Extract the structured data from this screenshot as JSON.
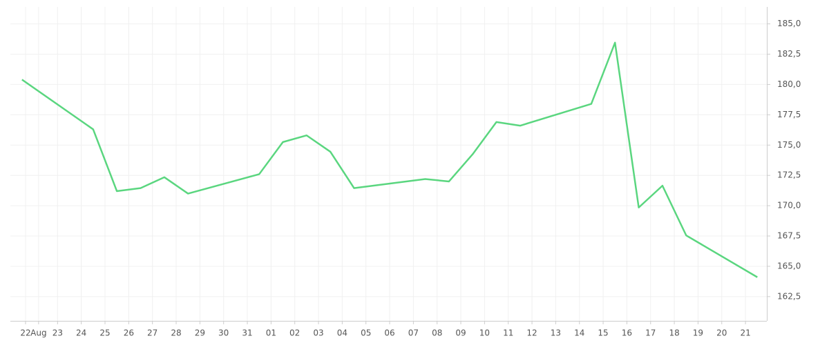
{
  "chart_data": {
    "type": "line",
    "x": [
      -0.5,
      2.5,
      3.5,
      4.5,
      5.5,
      6.5,
      9.5,
      10.5,
      11.5,
      12.5,
      13.5,
      16.5,
      17.5,
      18.5,
      19.5,
      20.5,
      23.5,
      24.5,
      25.5,
      26.5,
      27.5,
      30.5
    ],
    "series": [
      {
        "color": "#5ad67f",
        "values": [
          180.4,
          176.3,
          171.2,
          171.45,
          172.35,
          171.0,
          172.6,
          175.25,
          175.8,
          174.45,
          171.45,
          172.2,
          172.0,
          174.25,
          176.9,
          176.6,
          178.4,
          183.45,
          169.85,
          171.65,
          167.55,
          164.1
        ]
      }
    ],
    "xlim": [
      -0.99,
      30.9
    ],
    "xticks": [
      {
        "value": -0.35,
        "label": "22"
      },
      {
        "value": 0.2,
        "label": "Aug"
      },
      {
        "value": 1,
        "label": "23"
      },
      {
        "value": 2,
        "label": "24"
      },
      {
        "value": 3,
        "label": "25"
      },
      {
        "value": 4,
        "label": "26"
      },
      {
        "value": 5,
        "label": "27"
      },
      {
        "value": 6,
        "label": "28"
      },
      {
        "value": 7,
        "label": "29"
      },
      {
        "value": 8,
        "label": "30"
      },
      {
        "value": 9,
        "label": "31"
      },
      {
        "value": 10,
        "label": "01"
      },
      {
        "value": 11,
        "label": "02"
      },
      {
        "value": 12,
        "label": "03"
      },
      {
        "value": 13,
        "label": "04"
      },
      {
        "value": 14,
        "label": "05"
      },
      {
        "value": 15,
        "label": "06"
      },
      {
        "value": 16,
        "label": "07"
      },
      {
        "value": 17,
        "label": "08"
      },
      {
        "value": 18,
        "label": "09"
      },
      {
        "value": 19,
        "label": "10"
      },
      {
        "value": 20,
        "label": "11"
      },
      {
        "value": 21,
        "label": "12"
      },
      {
        "value": 22,
        "label": "13"
      },
      {
        "value": 23,
        "label": "14"
      },
      {
        "value": 24,
        "label": "15"
      },
      {
        "value": 25,
        "label": "16"
      },
      {
        "value": 26,
        "label": "17"
      },
      {
        "value": 27,
        "label": "18"
      },
      {
        "value": 28,
        "label": "19"
      },
      {
        "value": 29,
        "label": "20"
      },
      {
        "value": 30,
        "label": "21"
      }
    ],
    "ylim": [
      160.5,
      186.4
    ],
    "yticks": [
      {
        "value": 162.5,
        "label": "162,5"
      },
      {
        "value": 165,
        "label": "165,0"
      },
      {
        "value": 167.5,
        "label": "167,5"
      },
      {
        "value": 170,
        "label": "170,0"
      },
      {
        "value": 172.5,
        "label": "172,5"
      },
      {
        "value": 175,
        "label": "175,0"
      },
      {
        "value": 177.5,
        "label": "177,5"
      },
      {
        "value": 180,
        "label": "180,0"
      },
      {
        "value": 182.5,
        "label": "182,5"
      },
      {
        "value": 185,
        "label": "185,0"
      }
    ],
    "grid": true
  }
}
